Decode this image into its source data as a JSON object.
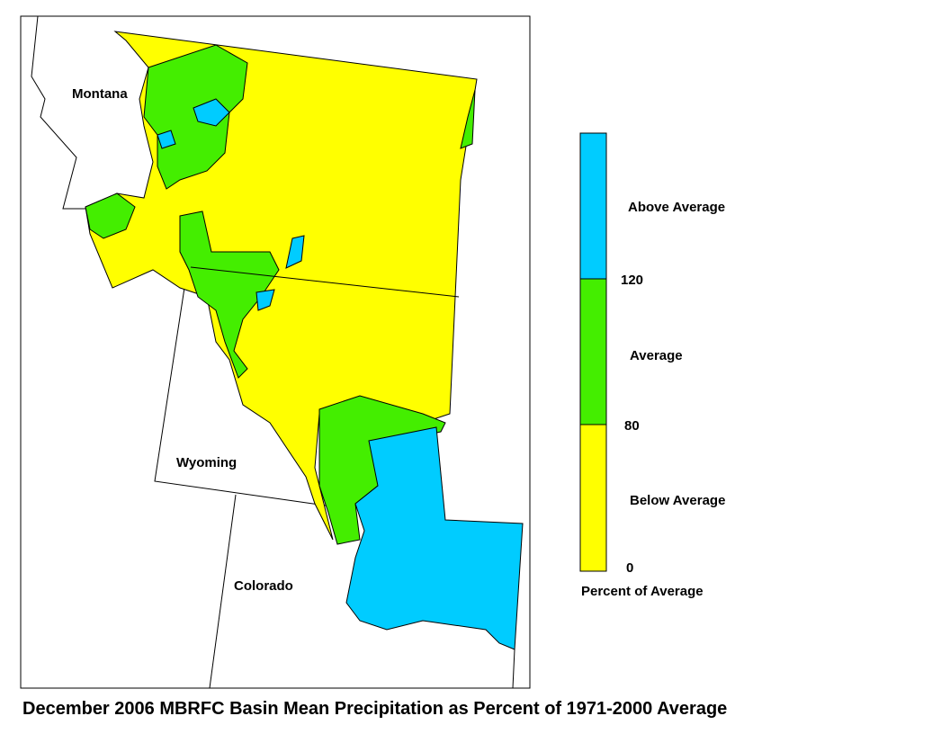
{
  "map": {
    "state_labels": [
      "Montana",
      "Wyoming",
      "Colorado"
    ]
  },
  "legend": {
    "categories": [
      "Above Average",
      "Average",
      "Below Average"
    ],
    "ticks": [
      120,
      80,
      0
    ],
    "title": "Percent of Average"
  },
  "caption": "December 2006 MBRFC Basin Mean Precipitation as Percent of 1971-2000 Average"
}
